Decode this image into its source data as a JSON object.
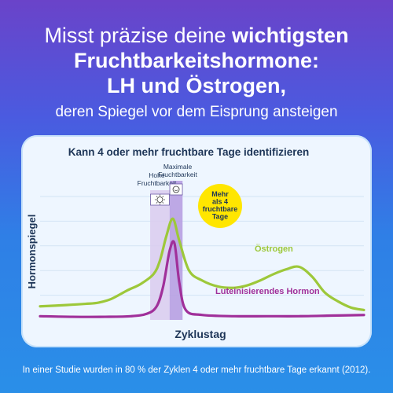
{
  "headline": {
    "line1_regular": "Misst präzise deine ",
    "line1_bold": "wichtigsten",
    "line2": "Fruchtbarkeitshormone:",
    "line3": "LH und Östrogen,",
    "line4": "deren Spiegel vor dem Eisprung ansteigen"
  },
  "footnote": "In einer Studie wurden in 80 % der Zyklen 4 oder mehr fruchtbare Tage erkannt (2012).",
  "colors": {
    "estrogen": "#9dc83a",
    "lh": "#a0309a",
    "high_band": "#d9cbef",
    "max_band": "#b49ae0",
    "badge": "#ffe600",
    "axis_text": "#1d3557"
  },
  "chart_data": {
    "type": "line",
    "title": "Kann 4 oder mehr fruchtbare Tage identifizieren",
    "xlabel": "Zyklustag",
    "ylabel": "Hormonspiegel",
    "grid": true,
    "ylim": [
      0,
      100
    ],
    "xlim": [
      0,
      100
    ],
    "series": [
      {
        "name": "Östrogen",
        "x": [
          0,
          8,
          14,
          18,
          22,
          27,
          31,
          35,
          37,
          39,
          41,
          43,
          46,
          50,
          55,
          60,
          64,
          68,
          72,
          76,
          80,
          84,
          88,
          92,
          96,
          100
        ],
        "y": [
          11,
          12,
          13,
          14,
          17,
          24,
          29,
          37,
          48,
          68,
          82,
          64,
          40,
          32,
          27,
          26,
          28,
          32,
          37,
          41,
          43,
          35,
          22,
          15,
          10,
          8
        ]
      },
      {
        "name": "Luteinisierendes Hormon",
        "x": [
          0,
          10,
          20,
          28,
          33,
          36,
          38,
          40,
          41.5,
          43,
          45,
          50,
          60,
          70,
          80,
          90,
          100
        ],
        "y": [
          3,
          2.5,
          2.5,
          3,
          5,
          11,
          27,
          56,
          62,
          30,
          8,
          4,
          3,
          3,
          3,
          3.5,
          4
        ]
      }
    ],
    "annotations": {
      "high_fertility": {
        "label_line1": "Hohe",
        "label_line2": "Fruchtbarkeit",
        "x_range": [
          34,
          40
        ]
      },
      "max_fertility": {
        "label_line1": "Maximale",
        "label_line2": "Fruchtbarkeit",
        "x_range": [
          40,
          44
        ]
      },
      "badge": {
        "line1": "Mehr",
        "line2": "als 4",
        "line3": "fruchtbare",
        "line4": "Tage"
      }
    }
  }
}
